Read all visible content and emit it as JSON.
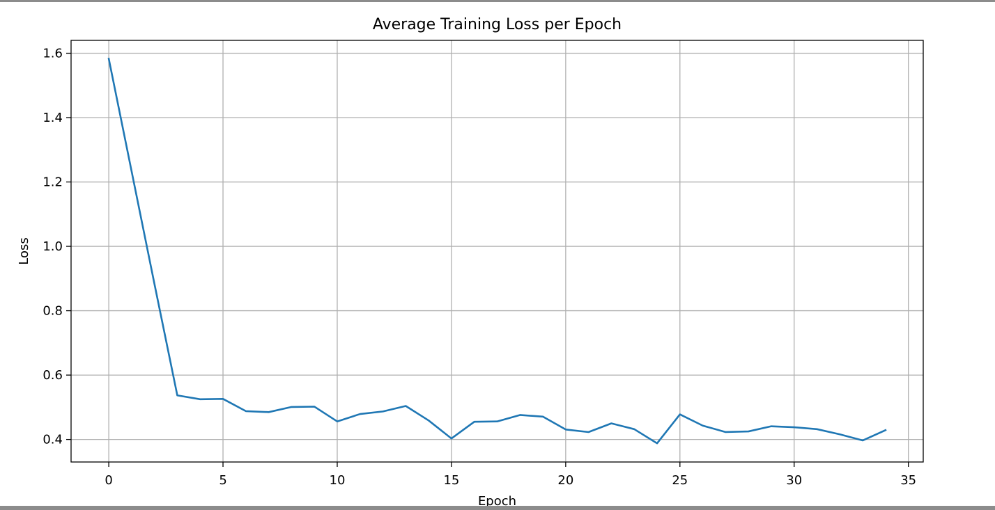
{
  "chart_data": {
    "type": "line",
    "title": "Average Training Loss per Epoch",
    "xlabel": "Epoch",
    "ylabel": "Loss",
    "xlim": [
      -1.65,
      35.65
    ],
    "ylim": [
      0.33,
      1.64
    ],
    "xticks": [
      0,
      5,
      10,
      15,
      20,
      25,
      30,
      35
    ],
    "yticks": [
      0.4,
      0.6,
      0.8,
      1.0,
      1.2,
      1.4,
      1.6
    ],
    "grid": true,
    "legend": false,
    "series": [
      {
        "color": "#1f77b4",
        "x": [
          0,
          1,
          2,
          3,
          4,
          5,
          6,
          7,
          8,
          9,
          10,
          11,
          12,
          13,
          14,
          15,
          16,
          17,
          18,
          19,
          20,
          21,
          22,
          23,
          24,
          25,
          26,
          27,
          28,
          29,
          30,
          31,
          32,
          33,
          34
        ],
        "y": [
          1.583,
          1.233,
          0.883,
          0.537,
          0.525,
          0.526,
          0.488,
          0.485,
          0.501,
          0.502,
          0.456,
          0.479,
          0.487,
          0.504,
          0.459,
          0.403,
          0.455,
          0.456,
          0.476,
          0.471,
          0.431,
          0.423,
          0.45,
          0.432,
          0.388,
          0.478,
          0.443,
          0.423,
          0.425,
          0.441,
          0.438,
          0.432,
          0.416,
          0.397,
          0.429
        ]
      }
    ]
  }
}
